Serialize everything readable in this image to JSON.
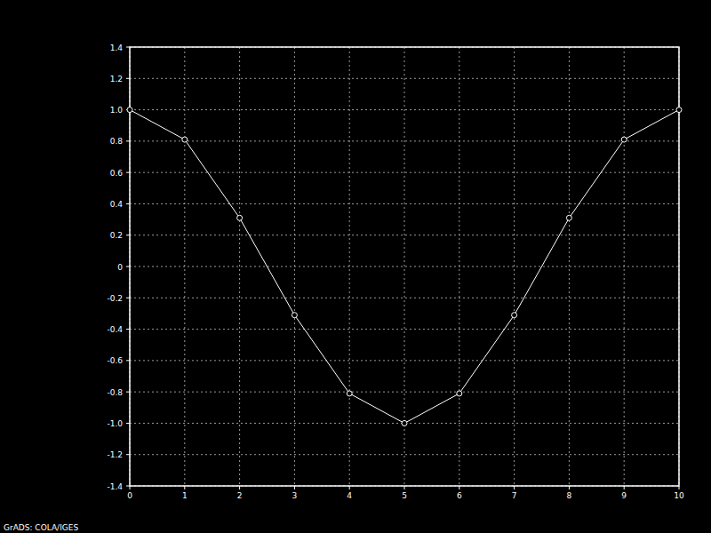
{
  "chart_data": {
    "type": "line",
    "x": [
      0,
      1,
      2,
      3,
      4,
      5,
      6,
      7,
      8,
      9,
      10
    ],
    "values": [
      1.0,
      0.81,
      0.31,
      -0.31,
      -0.81,
      -1.0,
      -0.81,
      -0.31,
      0.31,
      0.81,
      1.0
    ],
    "color": "#ffffff",
    "marker": "circle",
    "line_style": "solid",
    "xlim": [
      0,
      10
    ],
    "xticks": [
      0,
      1,
      2,
      3,
      4,
      5,
      6,
      7,
      8,
      9,
      10
    ],
    "ylim": [
      -1.4,
      1.4
    ],
    "yticks": [
      -1.4,
      -1.2,
      {
        "value": -1,
        "label": "-1.0"
      },
      -0.8,
      -0.6,
      -0.4,
      -0.2,
      0,
      0.2,
      0.4,
      0.6,
      0.8,
      {
        "value": 1,
        "label": "1.0"
      },
      1.2,
      1.4
    ],
    "grid": true,
    "annotations": [
      "GrADS: COLA/IGES"
    ]
  }
}
